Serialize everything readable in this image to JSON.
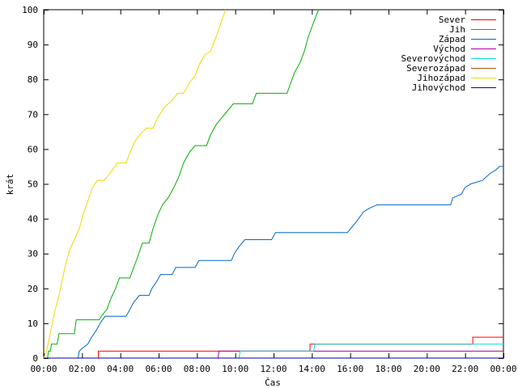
{
  "chart_data": {
    "type": "line",
    "title": "",
    "xlabel": "Čas",
    "ylabel": "krát",
    "xlim": [
      0,
      24
    ],
    "ylim": [
      0,
      100
    ],
    "x_unit": "hours",
    "x_ticks": [
      {
        "value": 0,
        "label": "00:00"
      },
      {
        "value": 2,
        "label": "02:00"
      },
      {
        "value": 4,
        "label": "04:00"
      },
      {
        "value": 6,
        "label": "06:00"
      },
      {
        "value": 8,
        "label": "08:00"
      },
      {
        "value": 10,
        "label": "10:00"
      },
      {
        "value": 12,
        "label": "12:00"
      },
      {
        "value": 14,
        "label": "14:00"
      },
      {
        "value": 16,
        "label": "16:00"
      },
      {
        "value": 18,
        "label": "18:00"
      },
      {
        "value": 20,
        "label": "20:00"
      },
      {
        "value": 22,
        "label": "22:00"
      },
      {
        "value": 24,
        "label": "00:00"
      }
    ],
    "y_ticks": [
      0,
      10,
      20,
      30,
      40,
      50,
      60,
      70,
      80,
      90,
      100
    ],
    "grid": false,
    "legend_position": "top-right",
    "series": [
      {
        "name": "Sever",
        "color": "#ff0000",
        "points": [
          [
            0,
            0
          ],
          [
            2.85,
            0
          ],
          [
            2.85,
            2
          ],
          [
            13.9,
            2
          ],
          [
            13.9,
            4
          ],
          [
            22.4,
            4
          ],
          [
            22.4,
            6
          ],
          [
            24,
            6
          ]
        ]
      },
      {
        "name": "Jih",
        "color": "#00b000",
        "points": [
          [
            0,
            0
          ],
          [
            0.2,
            0
          ],
          [
            0.25,
            2
          ],
          [
            0.35,
            2
          ],
          [
            0.4,
            4
          ],
          [
            0.7,
            4
          ],
          [
            0.8,
            7
          ],
          [
            1.6,
            7
          ],
          [
            1.7,
            11
          ],
          [
            2.9,
            11
          ],
          [
            3.0,
            12
          ],
          [
            3.3,
            14
          ],
          [
            3.5,
            17
          ],
          [
            3.75,
            20
          ],
          [
            3.95,
            23
          ],
          [
            4.5,
            23
          ],
          [
            4.7,
            26
          ],
          [
            4.9,
            29
          ],
          [
            5.15,
            33
          ],
          [
            5.5,
            33
          ],
          [
            5.7,
            37
          ],
          [
            5.95,
            41
          ],
          [
            6.2,
            44
          ],
          [
            6.5,
            46
          ],
          [
            6.8,
            49
          ],
          [
            7.05,
            52
          ],
          [
            7.3,
            56
          ],
          [
            7.6,
            59
          ],
          [
            7.9,
            61
          ],
          [
            8.5,
            61
          ],
          [
            8.7,
            64
          ],
          [
            9.0,
            67
          ],
          [
            9.3,
            69
          ],
          [
            9.6,
            71
          ],
          [
            9.9,
            73
          ],
          [
            10.9,
            73
          ],
          [
            11.1,
            76
          ],
          [
            12.7,
            76
          ],
          [
            12.9,
            79
          ],
          [
            13.1,
            82
          ],
          [
            13.4,
            85
          ],
          [
            13.6,
            88
          ],
          [
            13.8,
            92
          ],
          [
            14.0,
            95
          ],
          [
            14.2,
            98
          ],
          [
            14.35,
            100
          ]
        ]
      },
      {
        "name": "Západ",
        "color": "#0066cc",
        "points": [
          [
            0,
            0
          ],
          [
            1.8,
            0
          ],
          [
            1.85,
            2
          ],
          [
            2.05,
            3
          ],
          [
            2.3,
            4
          ],
          [
            2.5,
            6
          ],
          [
            2.75,
            8
          ],
          [
            2.95,
            10
          ],
          [
            3.2,
            12
          ],
          [
            4.3,
            12
          ],
          [
            4.5,
            14
          ],
          [
            4.7,
            16
          ],
          [
            5.0,
            18
          ],
          [
            5.5,
            18
          ],
          [
            5.65,
            20
          ],
          [
            5.9,
            22
          ],
          [
            6.1,
            24
          ],
          [
            6.7,
            24
          ],
          [
            6.9,
            26
          ],
          [
            7.9,
            26
          ],
          [
            8.1,
            28
          ],
          [
            9.8,
            28
          ],
          [
            9.95,
            30
          ],
          [
            10.2,
            32
          ],
          [
            10.5,
            34
          ],
          [
            11.9,
            34
          ],
          [
            12.1,
            36
          ],
          [
            15.85,
            36
          ],
          [
            16.0,
            37
          ],
          [
            16.3,
            39
          ],
          [
            16.7,
            42
          ],
          [
            17.0,
            43
          ],
          [
            17.4,
            44
          ],
          [
            21.25,
            44
          ],
          [
            21.35,
            46
          ],
          [
            21.8,
            47
          ],
          [
            22.0,
            49
          ],
          [
            22.3,
            50
          ],
          [
            22.9,
            51
          ],
          [
            23.3,
            53
          ],
          [
            23.6,
            54
          ],
          [
            23.8,
            55
          ],
          [
            24,
            55
          ]
        ]
      },
      {
        "name": "Východ",
        "color": "#aa00aa",
        "points": [
          [
            0,
            0
          ],
          [
            9.1,
            0
          ],
          [
            9.15,
            2
          ],
          [
            24,
            2
          ]
        ]
      },
      {
        "name": "Severovýchod",
        "color": "#00dddd",
        "points": [
          [
            0,
            0
          ],
          [
            10.2,
            0
          ],
          [
            10.25,
            2
          ],
          [
            14.1,
            2
          ],
          [
            14.15,
            4
          ],
          [
            24,
            4
          ]
        ]
      },
      {
        "name": "Severozápad",
        "color": "#b05010",
        "points": [
          [
            0,
            0
          ],
          [
            24,
            0
          ]
        ]
      },
      {
        "name": "Jihozápad",
        "color": "#f0d800",
        "points": [
          [
            0,
            0
          ],
          [
            0.15,
            2
          ],
          [
            0.3,
            6
          ],
          [
            0.45,
            10
          ],
          [
            0.6,
            14
          ],
          [
            0.8,
            18
          ],
          [
            0.95,
            22
          ],
          [
            1.15,
            27
          ],
          [
            1.35,
            31
          ],
          [
            1.6,
            34
          ],
          [
            1.85,
            37
          ],
          [
            2.05,
            41
          ],
          [
            2.3,
            45
          ],
          [
            2.55,
            49
          ],
          [
            2.8,
            51
          ],
          [
            3.15,
            51
          ],
          [
            3.45,
            53
          ],
          [
            3.85,
            56
          ],
          [
            4.3,
            56
          ],
          [
            4.5,
            59
          ],
          [
            4.75,
            62
          ],
          [
            5.0,
            64
          ],
          [
            5.35,
            66
          ],
          [
            5.7,
            66
          ],
          [
            5.95,
            69
          ],
          [
            6.3,
            72
          ],
          [
            6.7,
            74
          ],
          [
            7.0,
            76
          ],
          [
            7.3,
            76
          ],
          [
            7.6,
            79
          ],
          [
            7.9,
            81
          ],
          [
            8.1,
            84
          ],
          [
            8.4,
            87
          ],
          [
            8.7,
            88
          ],
          [
            8.85,
            90
          ],
          [
            9.05,
            93
          ],
          [
            9.3,
            97
          ],
          [
            9.5,
            100
          ]
        ]
      },
      {
        "name": "Jihovýchod",
        "color": "#00008b",
        "points": [
          [
            0,
            0
          ],
          [
            24,
            0
          ]
        ]
      }
    ]
  }
}
